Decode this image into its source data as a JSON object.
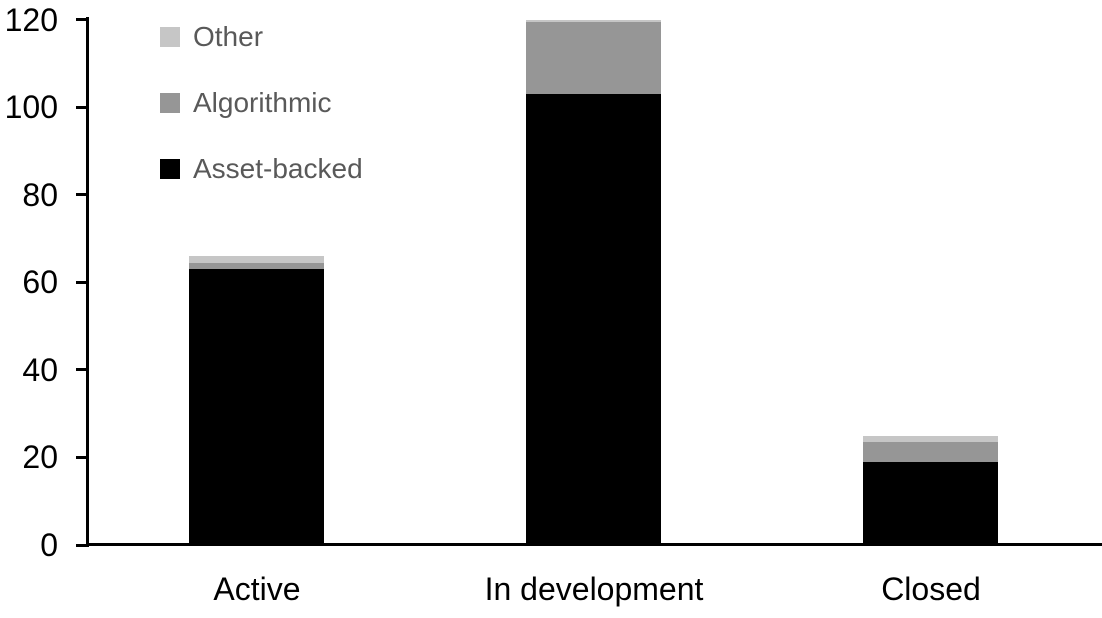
{
  "chart_data": {
    "type": "bar",
    "stacked": true,
    "title": "",
    "xlabel": "",
    "ylabel": "",
    "categories": [
      "Active",
      "In development",
      "Closed"
    ],
    "series": [
      {
        "name": "Asset-backed",
        "color": "#000000",
        "values": [
          63,
          103,
          19
        ]
      },
      {
        "name": "Algorithmic",
        "color": "#969696",
        "values": [
          1.5,
          16.5,
          4.5
        ]
      },
      {
        "name": "Other",
        "color": "#c6c6c6",
        "values": [
          1.5,
          0.5,
          1.5
        ]
      }
    ],
    "totals": [
      66,
      120,
      25
    ],
    "legend_order": [
      "Other",
      "Algorithmic",
      "Asset-backed"
    ],
    "legend_position": "top-left",
    "y_ticks": [
      0,
      20,
      40,
      60,
      80,
      100,
      120
    ],
    "ylim": [
      0,
      120
    ],
    "grid": false
  },
  "colors": {
    "background": "#ffffff",
    "axis": "#000000",
    "tick_label_text": "#000000",
    "category_label_text": "#000000",
    "legend_text": "#595959"
  }
}
